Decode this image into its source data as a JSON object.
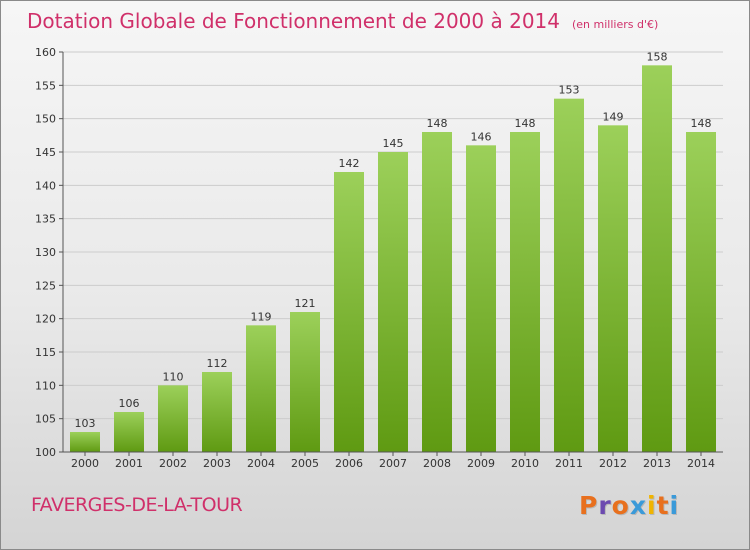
{
  "header": {
    "title": "Dotation Globale de Fonctionnement de 2000 à 2014",
    "unit": "(en milliers d'€)"
  },
  "footer": {
    "commune": "FAVERGES-DE-LA-TOUR",
    "brand": "Proxiti"
  },
  "colors": {
    "title": "#d0306a",
    "bar_light": "#9cd05a",
    "bar_dark": "#5f9a12",
    "grid": "#cccccc",
    "brand_letters": [
      "#e8701e",
      "#6c4ab0",
      "#e8701e",
      "#3a9ad9",
      "#f0b400",
      "#e8701e",
      "#3a9ad9"
    ]
  },
  "chart_data": {
    "type": "bar",
    "title": "Dotation Globale de Fonctionnement de 2000 à 2014",
    "subtitle": "(en milliers d'€)",
    "xlabel": "",
    "ylabel": "",
    "categories": [
      "2000",
      "2001",
      "2002",
      "2003",
      "2004",
      "2005",
      "2006",
      "2007",
      "2008",
      "2009",
      "2010",
      "2011",
      "2012",
      "2013",
      "2014"
    ],
    "values": [
      103,
      106,
      110,
      112,
      119,
      121,
      142,
      145,
      148,
      146,
      148,
      153,
      149,
      158,
      148
    ],
    "ylim": [
      100,
      160
    ],
    "yticks": [
      100,
      105,
      110,
      115,
      120,
      125,
      130,
      135,
      140,
      145,
      150,
      155,
      160
    ],
    "grid": true,
    "data_labels": true
  }
}
